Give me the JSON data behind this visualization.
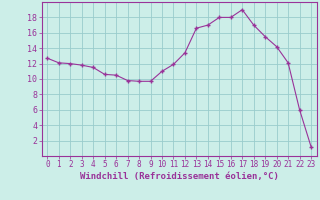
{
  "x": [
    0,
    1,
    2,
    3,
    4,
    5,
    6,
    7,
    8,
    9,
    10,
    11,
    12,
    13,
    14,
    15,
    16,
    17,
    18,
    19,
    20,
    21,
    22,
    23
  ],
  "y": [
    12.7,
    12.1,
    12.0,
    11.8,
    11.5,
    10.6,
    10.5,
    9.8,
    9.7,
    9.7,
    11.0,
    11.9,
    13.4,
    16.6,
    17.0,
    18.0,
    18.0,
    19.0,
    17.0,
    15.5,
    14.2,
    12.1,
    6.0,
    1.2
  ],
  "line_color": "#993399",
  "marker": "+",
  "marker_size": 3.5,
  "marker_linewidth": 1.0,
  "line_width": 0.8,
  "bg_color": "#cceee8",
  "grid_color": "#99cccc",
  "xlabel": "Windchill (Refroidissement éolien,°C)",
  "xlabel_color": "#993399",
  "tick_color": "#993399",
  "ylim": [
    0,
    20
  ],
  "xlim": [
    -0.5,
    23.5
  ],
  "yticks": [
    2,
    4,
    6,
    8,
    10,
    12,
    14,
    16,
    18
  ],
  "xticks": [
    0,
    1,
    2,
    3,
    4,
    5,
    6,
    7,
    8,
    9,
    10,
    11,
    12,
    13,
    14,
    15,
    16,
    17,
    18,
    19,
    20,
    21,
    22,
    23
  ],
  "tick_fontsize": 5.5,
  "xlabel_fontsize": 6.5
}
